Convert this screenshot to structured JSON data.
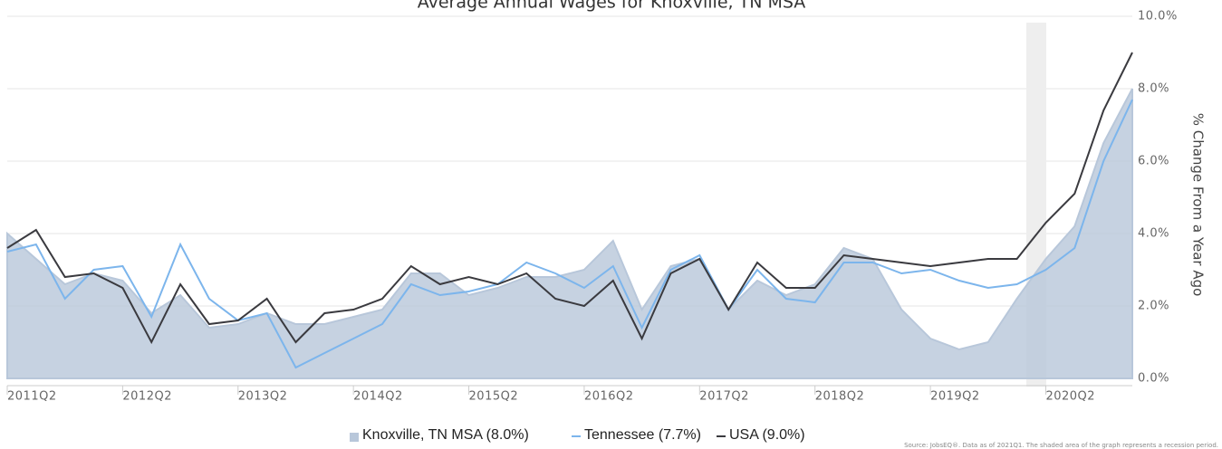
{
  "chart_data": {
    "type": "line",
    "title": "Average Annual Wages for Knoxville, TN MSA",
    "y_label": "% Change From a Year Ago",
    "source": "Source: JobsEQ®. Data as of 2021Q1. The shaded area of the graph represents a recession period.",
    "categories": [
      "2011Q2",
      null,
      null,
      null,
      "2012Q2",
      null,
      null,
      null,
      "2013Q2",
      null,
      null,
      null,
      "2014Q2",
      null,
      null,
      null,
      "2015Q2",
      null,
      null,
      null,
      "2016Q2",
      null,
      null,
      null,
      "2017Q2",
      null,
      null,
      null,
      "2018Q2",
      null,
      null,
      null,
      "2019Q2",
      null,
      null,
      null,
      "2020Q2",
      null,
      null,
      null
    ],
    "ylim": [
      0,
      10
    ],
    "yticks": [
      {
        "value": 0,
        "label": "0.0%"
      },
      {
        "value": 2,
        "label": "2.0%"
      },
      {
        "value": 4,
        "label": "4.0%"
      },
      {
        "value": 6,
        "label": "6.0%"
      },
      {
        "value": 8,
        "label": "8.0%"
      },
      {
        "value": 10,
        "label": "10.0%"
      }
    ],
    "grid": true,
    "series": [
      {
        "name": "Knoxville, TN MSA (8.0%)",
        "style": "area",
        "color": "#b8c7da",
        "values": [
          4.0,
          3.3,
          2.6,
          2.9,
          2.7,
          1.8,
          2.3,
          1.4,
          1.5,
          1.8,
          1.5,
          1.5,
          1.7,
          1.9,
          2.9,
          2.9,
          2.3,
          2.5,
          2.8,
          2.8,
          3.0,
          3.8,
          1.9,
          3.1,
          3.3,
          1.9,
          2.7,
          2.3,
          2.6,
          3.6,
          3.3,
          1.9,
          1.1,
          0.8,
          1.0,
          2.2,
          3.3,
          4.2,
          6.5,
          8.0
        ]
      },
      {
        "name": "Tennessee (7.7%)",
        "style": "line",
        "color": "#7cb5ec",
        "values": [
          3.5,
          3.7,
          2.2,
          3.0,
          3.1,
          1.7,
          3.7,
          2.2,
          1.6,
          1.8,
          0.3,
          0.7,
          1.1,
          1.5,
          2.6,
          2.3,
          2.4,
          2.6,
          3.2,
          2.9,
          2.5,
          3.1,
          1.4,
          3.0,
          3.4,
          1.9,
          3.0,
          2.2,
          2.1,
          3.2,
          3.2,
          2.9,
          3.0,
          2.7,
          2.5,
          2.6,
          3.0,
          3.6,
          6.0,
          7.7
        ]
      },
      {
        "name": "USA (9.0%)",
        "style": "line",
        "color": "#3a3a3f",
        "values": [
          3.6,
          4.1,
          2.8,
          2.9,
          2.5,
          1.0,
          2.6,
          1.5,
          1.6,
          2.2,
          1.0,
          1.8,
          1.9,
          2.2,
          3.1,
          2.6,
          2.8,
          2.6,
          2.9,
          2.2,
          2.0,
          2.7,
          1.1,
          2.9,
          3.3,
          1.9,
          3.2,
          2.5,
          2.5,
          3.4,
          3.3,
          3.2,
          3.1,
          3.2,
          3.3,
          3.3,
          4.3,
          5.1,
          7.4,
          9.0
        ]
      }
    ]
  }
}
